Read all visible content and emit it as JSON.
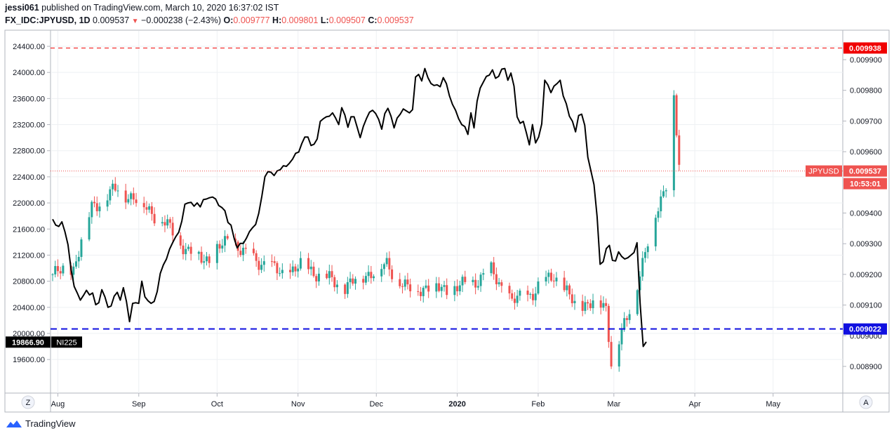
{
  "header": {
    "user": "jessi061",
    "published": "published on TradingView.com, March 10, 2020 16:37:02 IST",
    "symbol": "FX_IDC:JPYUSD, 1D",
    "last": "0.009537",
    "change": "−0.000238 (−2.43%)",
    "o_label": "O:",
    "o": "0.009777",
    "h_label": "H:",
    "h": "0.009801",
    "l_label": "L:",
    "l": "0.009507",
    "c_label": "C:",
    "c": "0.009537"
  },
  "footer": {
    "brand": "TradingView"
  },
  "buttons": {
    "z": "Z",
    "a": "A"
  },
  "chart_data": {
    "type": "candlestick+line",
    "x_labels": [
      "Aug",
      "Sep",
      "Oct",
      "Nov",
      "Dec",
      "2020",
      "Feb",
      "Mar",
      "Apr",
      "May"
    ],
    "left_axis": {
      "series": "NI225",
      "range": [
        19450,
        24500
      ],
      "ticks": [
        "24400.00",
        "24000.00",
        "23600.00",
        "23200.00",
        "22800.00",
        "22400.00",
        "22000.00",
        "21600.00",
        "21200.00",
        "20800.00",
        "20400.00",
        "20000.00",
        "19600.00"
      ]
    },
    "right_axis": {
      "series": "JPYUSD",
      "range": [
        0.00886,
        0.00996
      ],
      "ticks": [
        "0.009900",
        "0.009800",
        "0.009700",
        "0.009600",
        "0.009400",
        "0.009300",
        "0.009200",
        "0.009100",
        "0.009000",
        "0.008900"
      ]
    },
    "markers": {
      "red_level": {
        "value": 0.009938,
        "label": "0.009938",
        "color": "#f00000"
      },
      "blue_level": {
        "value": 0.009022,
        "label": "0.009022",
        "color": "#1010e0"
      },
      "last_price": {
        "value": 0.009537,
        "name": "JPYUSD",
        "label": "0.009537",
        "countdown": "10:53:01",
        "color": "#ef5350"
      },
      "ni225_last": {
        "value": 19866.9,
        "label": "19866.90",
        "name": "NI225"
      }
    },
    "ni225": [
      21750,
      21660,
      21640,
      21710,
      21560,
      21360,
      20980,
      20720,
      20620,
      20510,
      20580,
      20660,
      20590,
      20620,
      20440,
      20470,
      20670,
      20560,
      20400,
      20420,
      20570,
      20630,
      20510,
      20700,
      20490,
      20180,
      20460,
      20470,
      20460,
      20800,
      20560,
      20500,
      20460,
      20490,
      20640,
      20920,
      21050,
      21140,
      21290,
      21390,
      21480,
      21550,
      21720,
      21980,
      22000,
      22010,
      21950,
      22000,
      21940,
      22050,
      22060,
      22080,
      22090,
      22060,
      21960,
      21930,
      21880,
      21700,
      21660,
      21460,
      21310,
      21380,
      21380,
      21460,
      21560,
      21620,
      21670,
      21840,
      22100,
      22400,
      22480,
      22470,
      22420,
      22490,
      22510,
      22570,
      22560,
      22610,
      22670,
      22760,
      22780,
      22910,
      23010,
      23010,
      22880,
      22900,
      22980,
      23250,
      23290,
      23320,
      23330,
      23380,
      23300,
      23200,
      23460,
      23350,
      23160,
      23320,
      23320,
      23160,
      23000,
      23170,
      23290,
      23390,
      23420,
      23370,
      23280,
      23130,
      23370,
      23450,
      23330,
      23150,
      23300,
      23360,
      23440,
      23410,
      23380,
      23430,
      23930,
      23970,
      23870,
      24060,
      23920,
      23830,
      23800,
      23810,
      23780,
      23920,
      23830,
      23640,
      23510,
      23420,
      23290,
      23200,
      23170,
      23050,
      23380,
      23150,
      23560,
      23760,
      23850,
      23940,
      23960,
      24040,
      23910,
      23940,
      24050,
      24060,
      23880,
      23990,
      23790,
      23320,
      23220,
      23250,
      23080,
      22890,
      23200,
      22920,
      23010,
      23210,
      23880,
      23810,
      23690,
      23790,
      23830,
      23880,
      23640,
      23520,
      23330,
      23250,
      23090,
      23340,
      23360,
      23190,
      22700,
      22490,
      22280,
      21790,
      21060,
      21100,
      21300,
      21350,
      21120,
      21110,
      21250,
      21180,
      21140,
      21160,
      21200,
      21240,
      21390,
      20460,
      19800,
      19870
    ]
  }
}
